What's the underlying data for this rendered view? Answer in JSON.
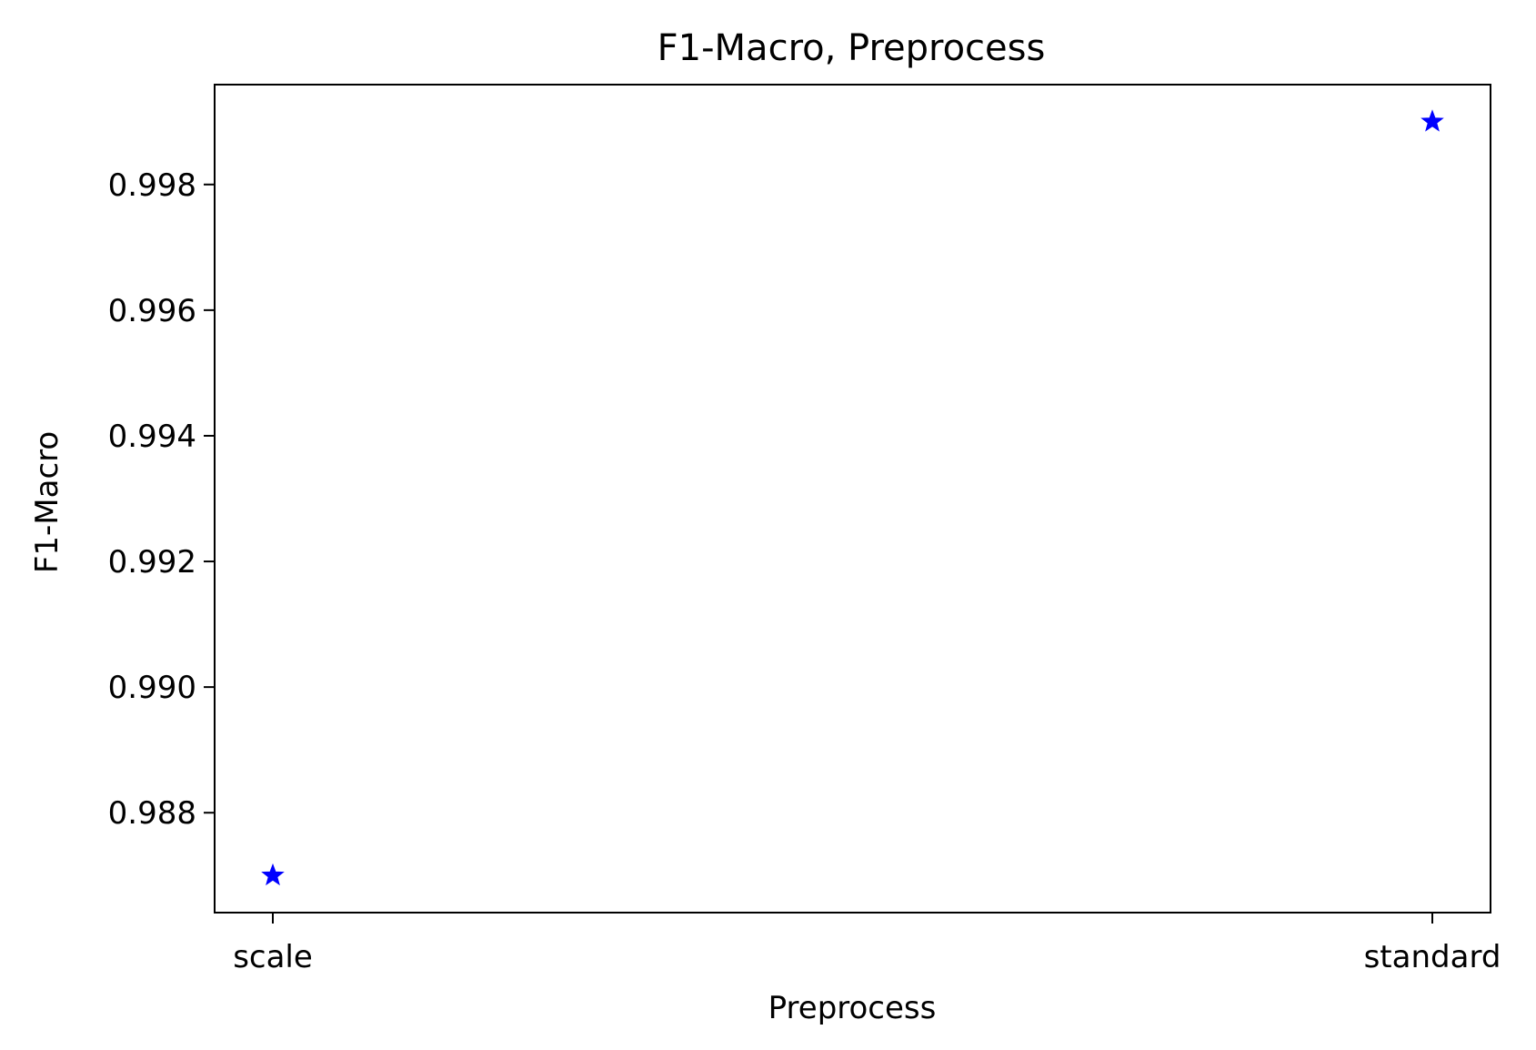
{
  "chart_data": {
    "type": "scatter",
    "title": "F1-Macro, Preprocess",
    "xlabel": "Preprocess",
    "ylabel": "F1-Macro",
    "categories": [
      "scale",
      "standard"
    ],
    "values": [
      0.987,
      0.999
    ],
    "y_ticks": [
      "0.988",
      "0.990",
      "0.992",
      "0.994",
      "0.996",
      "0.998"
    ],
    "ylim": [
      0.98641,
      0.99959
    ],
    "marker": "star",
    "marker_color": "#0000ff",
    "grid": false,
    "legend": "none"
  }
}
